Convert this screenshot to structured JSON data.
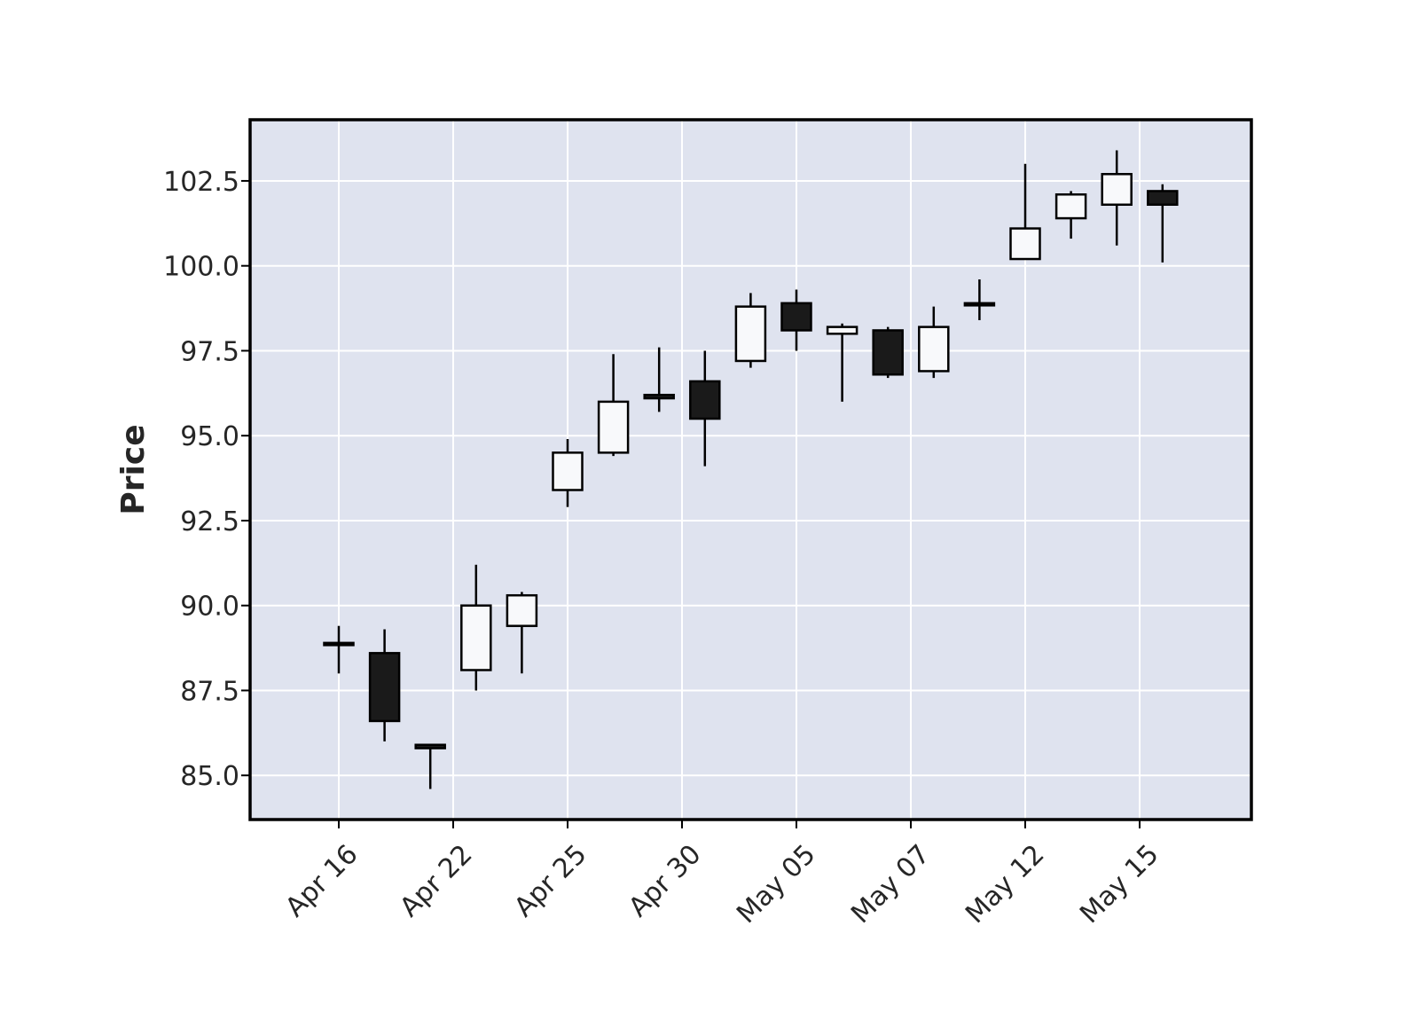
{
  "colors": {
    "plot_background": "#DFE3EF",
    "grid": "#FFFFFF",
    "frame": "#000000",
    "up_fill": "#F8F9FB",
    "down_fill": "#1A1A1A",
    "edge": "#000000",
    "text": "#262626"
  },
  "chart_data": {
    "type": "candlestick",
    "title": "",
    "xlabel": "",
    "ylabel": "Price",
    "grid": true,
    "ylim": [
      83.7,
      104.3
    ],
    "yticks": [
      "85.0",
      "87.5",
      "90.0",
      "92.5",
      "95.0",
      "97.5",
      "100.0",
      "102.5"
    ],
    "xtick_labels": [
      "Apr 16",
      "Apr 22",
      "Apr 25",
      "Apr 30",
      "May 05",
      "May 07",
      "May 12",
      "May 15"
    ],
    "xtick_indices": [
      0,
      2.5,
      5,
      7.5,
      10,
      12.5,
      15,
      17.5
    ],
    "candles": [
      {
        "open": 88.9,
        "high": 89.4,
        "low": 88.0,
        "close": 88.9
      },
      {
        "open": 88.6,
        "high": 89.3,
        "low": 86.0,
        "close": 86.6
      },
      {
        "open": 85.9,
        "high": 85.9,
        "low": 84.6,
        "close": 85.8
      },
      {
        "open": 88.1,
        "high": 91.2,
        "low": 87.5,
        "close": 90.0
      },
      {
        "open": 89.4,
        "high": 90.4,
        "low": 88.0,
        "close": 90.3
      },
      {
        "open": 93.4,
        "high": 94.9,
        "low": 92.9,
        "close": 94.5
      },
      {
        "open": 94.5,
        "high": 97.4,
        "low": 94.4,
        "close": 96.0
      },
      {
        "open": 96.2,
        "high": 97.6,
        "low": 95.7,
        "close": 96.1
      },
      {
        "open": 96.6,
        "high": 97.5,
        "low": 94.1,
        "close": 95.5
      },
      {
        "open": 97.2,
        "high": 99.2,
        "low": 97.0,
        "close": 98.8
      },
      {
        "open": 98.9,
        "high": 99.3,
        "low": 97.5,
        "close": 98.1
      },
      {
        "open": 98.0,
        "high": 98.3,
        "low": 96.0,
        "close": 98.2
      },
      {
        "open": 98.1,
        "high": 98.2,
        "low": 96.7,
        "close": 96.8
      },
      {
        "open": 96.9,
        "high": 98.8,
        "low": 96.7,
        "close": 98.2
      },
      {
        "open": 98.9,
        "high": 99.6,
        "low": 98.4,
        "close": 98.9
      },
      {
        "open": 100.2,
        "high": 103.0,
        "low": 100.2,
        "close": 101.1
      },
      {
        "open": 101.4,
        "high": 102.2,
        "low": 100.8,
        "close": 102.1
      },
      {
        "open": 101.8,
        "high": 103.4,
        "low": 100.6,
        "close": 102.7
      },
      {
        "open": 102.2,
        "high": 102.4,
        "low": 100.1,
        "close": 101.8
      }
    ]
  }
}
